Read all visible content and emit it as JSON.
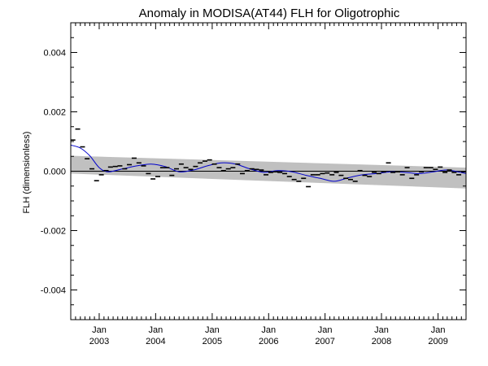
{
  "chart_data": {
    "type": "line",
    "title": "Anomaly in MODISA(AT44) FLH for Oligotrophic",
    "xlabel": "",
    "ylabel": "FLH (dimensionless)",
    "xlim": [
      "2002-07-01",
      "2009-07-01"
    ],
    "ylim": [
      -0.005,
      0.005
    ],
    "y_ticks": [
      -0.004,
      -0.002,
      0.0,
      0.002,
      0.004
    ],
    "y_tick_labels": [
      "-0.004",
      "-0.002",
      "0.000",
      "0.002",
      "0.004"
    ],
    "x_ticks": [
      "2003-01-01",
      "2004-01-01",
      "2005-01-01",
      "2006-01-01",
      "2007-01-01",
      "2008-01-01",
      "2009-01-01"
    ],
    "x_tick_labels_month": [
      "Jan",
      "Jan",
      "Jan",
      "Jan",
      "Jan",
      "Jan",
      "Jan"
    ],
    "x_tick_labels_year": [
      "2003",
      "2004",
      "2005",
      "2006",
      "2007",
      "2008",
      "2009"
    ],
    "grid": false,
    "colors": {
      "smooth": "#0000cc",
      "band": "#c0c0c0",
      "markers": "#000000",
      "zero_line": "#000000"
    },
    "series": [
      {
        "type": "monthly_markers",
        "x": [
          "2002-07-15",
          "2002-08-15",
          "2002-09-15",
          "2002-10-15",
          "2002-11-15",
          "2002-12-15",
          "2003-01-15",
          "2003-02-15",
          "2003-03-15",
          "2003-04-15",
          "2003-05-15",
          "2003-06-15",
          "2003-07-15",
          "2003-08-15",
          "2003-09-15",
          "2003-10-15",
          "2003-11-15",
          "2003-12-15",
          "2004-01-15",
          "2004-02-15",
          "2004-03-15",
          "2004-04-15",
          "2004-05-15",
          "2004-06-15",
          "2004-07-15",
          "2004-08-15",
          "2004-09-15",
          "2004-10-15",
          "2004-11-15",
          "2004-12-15",
          "2005-01-15",
          "2005-02-15",
          "2005-03-15",
          "2005-04-15",
          "2005-05-15",
          "2005-06-15",
          "2005-07-15",
          "2005-08-15",
          "2005-09-15",
          "2005-10-15",
          "2005-11-15",
          "2005-12-15",
          "2006-01-15",
          "2006-02-15",
          "2006-03-15",
          "2006-04-15",
          "2006-05-15",
          "2006-06-15",
          "2006-07-15",
          "2006-08-15",
          "2006-09-15",
          "2006-10-15",
          "2006-11-15",
          "2006-12-15",
          "2007-01-15",
          "2007-02-15",
          "2007-03-15",
          "2007-04-15",
          "2007-05-15",
          "2007-06-15",
          "2007-07-15",
          "2007-08-15",
          "2007-09-15",
          "2007-10-15",
          "2007-11-15",
          "2007-12-15",
          "2008-01-15",
          "2008-02-15",
          "2008-03-15",
          "2008-04-15",
          "2008-05-15",
          "2008-06-15",
          "2008-07-15",
          "2008-08-15",
          "2008-09-15",
          "2008-10-15",
          "2008-11-15",
          "2008-12-15",
          "2009-01-15",
          "2009-02-15",
          "2009-03-15",
          "2009-04-15",
          "2009-05-15",
          "2009-06-15"
        ],
        "values": [
          0.00105,
          0.00142,
          0.00082,
          0.00042,
          8e-05,
          -0.00032,
          -0.00012,
          2e-05,
          0.00014,
          0.00016,
          0.00018,
          8e-05,
          0.00022,
          0.00044,
          0.00028,
          0.00018,
          -8e-05,
          -0.00026,
          -0.00018,
          0.00012,
          0.00012,
          -0.00014,
          8e-05,
          0.00024,
          0.00012,
          6e-05,
          0.00016,
          0.00028,
          0.00034,
          0.00038,
          0.00024,
          0.00012,
          2e-05,
          8e-05,
          0.00012,
          0.00024,
          -8e-05,
          2e-05,
          8e-05,
          6e-05,
          4e-05,
          -0.00012,
          -4e-05,
          -2e-05,
          -4e-05,
          -8e-05,
          -0.00018,
          -0.00028,
          -0.00034,
          -0.00024,
          -0.00052,
          -0.00012,
          -0.00012,
          -8e-05,
          -6e-05,
          -0.00012,
          -4e-05,
          -0.00014,
          -0.00024,
          -0.00028,
          -0.00034,
          2e-05,
          -0.00014,
          -0.00018,
          -4e-05,
          -8e-05,
          -2e-05,
          0.00028,
          -4e-05,
          -2e-05,
          -0.00012,
          0.00012,
          -0.00024,
          -0.00012,
          -2e-05,
          0.00012,
          0.00012,
          6e-05,
          0.00014,
          -4e-05,
          4e-05,
          -4e-05,
          -0.00012,
          -2e-05
        ]
      },
      {
        "type": "smooth_line",
        "x": [
          "2002-07-01",
          "2002-09-01",
          "2002-11-01",
          "2003-01-01",
          "2003-03-01",
          "2003-06-01",
          "2003-09-01",
          "2003-12-01",
          "2004-03-01",
          "2004-06-01",
          "2004-09-01",
          "2004-12-01",
          "2005-03-01",
          "2005-06-01",
          "2005-09-01",
          "2005-12-01",
          "2006-03-01",
          "2006-06-01",
          "2006-09-01",
          "2006-12-01",
          "2007-03-01",
          "2007-06-01",
          "2007-09-01",
          "2007-12-01",
          "2008-03-01",
          "2008-06-01",
          "2008-09-01",
          "2008-12-01",
          "2009-03-01",
          "2009-07-01"
        ],
        "values": [
          0.00088,
          0.00078,
          0.00052,
          0.00012,
          -2e-05,
          8e-05,
          0.00018,
          0.00024,
          0.00016,
          -2e-05,
          4e-05,
          0.00018,
          0.00028,
          0.00024,
          8e-05,
          -4e-05,
          2e-05,
          -2e-05,
          -0.00014,
          -0.00024,
          -0.00034,
          -0.00022,
          -0.00012,
          -8e-05,
          -2e-05,
          -4e-05,
          -8e-05,
          -2e-05,
          4e-05,
          -8e-05
        ]
      },
      {
        "type": "trend_band",
        "x": [
          "2002-07-01",
          "2009-07-01"
        ],
        "upper": [
          0.00052,
          0.00012
        ],
        "lower": [
          -8e-05,
          -0.00058
        ]
      },
      {
        "type": "zero_line",
        "y": 0.0
      }
    ]
  }
}
